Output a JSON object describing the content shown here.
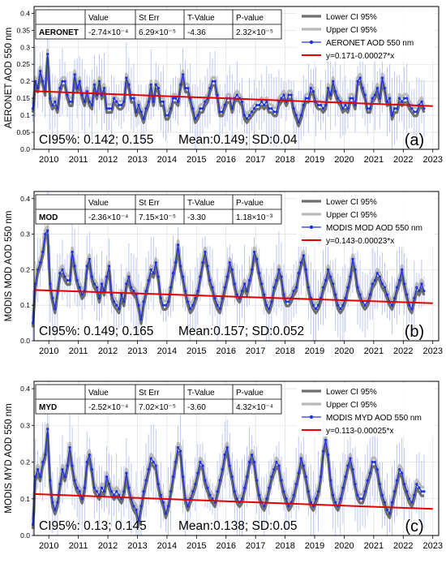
{
  "figure": {
    "colors": {
      "series_blue": "#1f33d6",
      "ci_lower": "#6f6f6f",
      "ci_upper": "#b9b9b9",
      "errbar": "#b9c2f2",
      "fit_red": "#e00000",
      "frame": "#000000"
    }
  },
  "chart_data": [
    {
      "type": "line",
      "panel_label": "(a)",
      "ylabel": "AERONET AOD 550 nm",
      "xlabel": "",
      "xlim": [
        2009.5,
        2023.2
      ],
      "ylim": [
        0.0,
        0.42
      ],
      "ytick_values": [
        0.0,
        0.05,
        0.1,
        0.15,
        0.2,
        0.25,
        0.3,
        0.35,
        0.4
      ],
      "ytick_labels": [
        "0.0",
        "0.05",
        "0.1",
        "0.15",
        "0.2",
        "0.25",
        "0.3",
        "0.35",
        "0.4"
      ],
      "xtick_values": [
        2010,
        2011,
        2012,
        2013,
        2014,
        2015,
        2016,
        2017,
        2018,
        2019,
        2020,
        2021,
        2022,
        2023
      ],
      "xtick_labels": [
        "2010",
        "2011",
        "2012",
        "2013",
        "2014",
        "2015",
        "2016",
        "2017",
        "2018",
        "2019",
        "2020",
        "2021",
        "2022",
        "2023"
      ],
      "grid": true,
      "legend_position": "top-right",
      "legend": [
        "Lower CI 95%",
        "Upper CI 95%",
        "AERONET AOD 550 nm",
        "y=0.171-0.00027*x"
      ],
      "stats_table": {
        "header": [
          "",
          "Value",
          "St Err",
          "T-Value",
          "P-value"
        ],
        "row": [
          "AERONET",
          "-2.74×10⁻⁴",
          "6.29×10⁻⁵",
          "-4.36",
          "2.32×10⁻⁵"
        ]
      },
      "ci_text": "CI95%: 0.142; 0.155",
      "mean_text": "Mean:0.149; SD:0.04",
      "fit": {
        "intercept": 0.171,
        "slope": -0.00027
      },
      "x_start": 2009.46,
      "dx": 0.0833,
      "mean_value": 0.149,
      "values": [
        0.12,
        0.2,
        0.18,
        0.23,
        0.2,
        0.17,
        0.28,
        0.15,
        0.13,
        0.14,
        0.12,
        0.18,
        0.2,
        0.2,
        0.16,
        0.14,
        0.14,
        0.22,
        0.18,
        0.2,
        0.16,
        0.14,
        0.17,
        0.14,
        0.13,
        0.19,
        0.16,
        0.2,
        0.16,
        0.18,
        0.12,
        0.12,
        0.12,
        0.15,
        0.14,
        0.13,
        0.13,
        0.14,
        0.21,
        0.19,
        0.15,
        0.15,
        0.11,
        0.13,
        0.11,
        0.09,
        0.12,
        0.14,
        0.19,
        0.14,
        0.19,
        0.18,
        0.14,
        0.14,
        0.1,
        0.1,
        0.12,
        0.15,
        0.15,
        0.14,
        0.19,
        0.22,
        0.18,
        0.18,
        0.15,
        0.12,
        0.09,
        0.1,
        0.12,
        0.12,
        0.14,
        0.15,
        0.18,
        0.2,
        0.2,
        0.16,
        0.11,
        0.11,
        0.13,
        0.15,
        0.15,
        0.12,
        0.15,
        0.16,
        0.15,
        0.14,
        0.1,
        0.09,
        0.1,
        0.11,
        0.12,
        0.13,
        0.13,
        0.14,
        0.13,
        0.14,
        0.12,
        0.12,
        0.11,
        0.11,
        0.14,
        0.15,
        0.16,
        0.14,
        0.16,
        0.16,
        0.12,
        0.1,
        0.08,
        0.1,
        0.13,
        0.15,
        0.15,
        0.18,
        0.17,
        0.14,
        0.13,
        0.13,
        0.12,
        0.13,
        0.18,
        0.16,
        0.2,
        0.17,
        0.15,
        0.14,
        0.12,
        0.13,
        0.12,
        0.15,
        0.15,
        0.13,
        0.2,
        0.21,
        0.18,
        0.16,
        0.12,
        0.12,
        0.15,
        0.16,
        0.18,
        0.15,
        0.21,
        0.18,
        0.14,
        0.15,
        0.1,
        0.12,
        0.12,
        0.15,
        0.14,
        0.15,
        0.15,
        0.13,
        0.12,
        0.11,
        0.11,
        0.13,
        0.14,
        0.12
      ]
    },
    {
      "type": "line",
      "panel_label": "(b)",
      "ylabel": "MODIS MOD AOD 550 nm",
      "xlabel": "",
      "xlim": [
        2009.5,
        2023.2
      ],
      "ylim": [
        0.0,
        0.42
      ],
      "ytick_values": [
        0.0,
        0.1,
        0.2,
        0.3,
        0.4
      ],
      "ytick_labels": [
        "0.0",
        "0.1",
        "0.2",
        "0.3",
        "0.4"
      ],
      "xtick_values": [
        2010,
        2011,
        2012,
        2013,
        2014,
        2015,
        2016,
        2017,
        2018,
        2019,
        2020,
        2021,
        2022,
        2023
      ],
      "xtick_labels": [
        "2010",
        "2011",
        "2012",
        "2013",
        "2014",
        "2015",
        "2016",
        "2017",
        "2018",
        "2019",
        "2020",
        "2021",
        "2022",
        "2023"
      ],
      "grid": true,
      "legend_position": "top-right",
      "legend": [
        "Lower CI 95%",
        "Upper CI 95%",
        "MODIS MOD AOD 550 nm",
        "y=0.143-0.00023*x"
      ],
      "stats_table": {
        "header": [
          "",
          "Value",
          "St Err",
          "T-Value",
          "P-value"
        ],
        "row": [
          "MOD",
          "-2.36×10⁻⁴",
          "7.15×10⁻⁵",
          "-3.30",
          "1.18×10⁻³"
        ]
      },
      "ci_text": "CI95%: 0.149; 0.165",
      "mean_text": "Mean:0.157; SD:0.052",
      "fit": {
        "intercept": 0.143,
        "slope": -0.00023
      },
      "x_start": 2009.46,
      "dx": 0.0833,
      "mean_value": 0.157,
      "values": [
        0.05,
        0.16,
        0.2,
        0.22,
        0.25,
        0.3,
        0.31,
        0.16,
        0.12,
        0.09,
        0.14,
        0.19,
        0.2,
        0.18,
        0.17,
        0.17,
        0.25,
        0.21,
        0.17,
        0.15,
        0.13,
        0.14,
        0.21,
        0.23,
        0.18,
        0.16,
        0.15,
        0.12,
        0.16,
        0.14,
        0.18,
        0.21,
        0.13,
        0.11,
        0.1,
        0.09,
        0.13,
        0.11,
        0.16,
        0.18,
        0.15,
        0.14,
        0.13,
        0.1,
        0.06,
        0.11,
        0.14,
        0.17,
        0.2,
        0.19,
        0.22,
        0.18,
        0.12,
        0.1,
        0.1,
        0.11,
        0.15,
        0.19,
        0.22,
        0.27,
        0.21,
        0.18,
        0.14,
        0.11,
        0.09,
        0.1,
        0.12,
        0.14,
        0.18,
        0.22,
        0.25,
        0.21,
        0.17,
        0.15,
        0.12,
        0.1,
        0.09,
        0.12,
        0.15,
        0.18,
        0.22,
        0.2,
        0.16,
        0.13,
        0.12,
        0.14,
        0.16,
        0.14,
        0.17,
        0.2,
        0.25,
        0.23,
        0.19,
        0.16,
        0.13,
        0.1,
        0.09,
        0.11,
        0.15,
        0.17,
        0.2,
        0.18,
        0.13,
        0.11,
        0.11,
        0.12,
        0.14,
        0.15,
        0.19,
        0.22,
        0.24,
        0.2,
        0.15,
        0.12,
        0.1,
        0.09,
        0.1,
        0.12,
        0.15,
        0.17,
        0.2,
        0.18,
        0.16,
        0.13,
        0.1,
        0.09,
        0.1,
        0.12,
        0.15,
        0.18,
        0.23,
        0.2,
        0.15,
        0.13,
        0.11,
        0.1,
        0.11,
        0.13,
        0.16,
        0.17,
        0.19,
        0.18,
        0.16,
        0.15,
        0.13,
        0.11,
        0.1,
        0.12,
        0.15,
        0.17,
        0.2,
        0.16,
        0.13,
        0.1,
        0.09,
        0.12,
        0.15,
        0.14,
        0.16,
        0.14
      ]
    },
    {
      "type": "line",
      "panel_label": "(c)",
      "ylabel": "MODIS MYD AOD 550 nm",
      "xlabel": "",
      "xlim": [
        2009.5,
        2023.2
      ],
      "ylim": [
        0.0,
        0.42
      ],
      "ytick_values": [
        0.0,
        0.1,
        0.2,
        0.3,
        0.4
      ],
      "ytick_labels": [
        "0.0",
        "0.1",
        "0.2",
        "0.3",
        "0.4"
      ],
      "xtick_values": [
        2010,
        2011,
        2012,
        2013,
        2014,
        2015,
        2016,
        2017,
        2018,
        2019,
        2020,
        2021,
        2022,
        2023
      ],
      "xtick_labels": [
        "2010",
        "2011",
        "2012",
        "2013",
        "2014",
        "2015",
        "2016",
        "2017",
        "2018",
        "2019",
        "2020",
        "2021",
        "2022",
        "2023"
      ],
      "grid": true,
      "legend_position": "top-right",
      "legend": [
        "Lower CI 95%",
        "Upper CI 95%",
        "MODIS MYD AOD 550 nm",
        "y=0.113-0.00025*x"
      ],
      "stats_table": {
        "header": [
          "",
          "Value",
          "St Err",
          "T-Value",
          "P-value"
        ],
        "row": [
          "MYD",
          "-2.52×10⁻⁴",
          "7.02×10⁻⁵",
          "-3.60",
          "4.32×10⁻⁴"
        ]
      },
      "ci_text": "CI95%: 0.13; 0.145",
      "mean_text": "Mean:0.138; SD:0.05",
      "fit": {
        "intercept": 0.113,
        "slope": -0.00025
      },
      "x_start": 2009.46,
      "dx": 0.0833,
      "mean_value": 0.138,
      "values": [
        0.03,
        0.16,
        0.18,
        0.16,
        0.2,
        0.22,
        0.29,
        0.15,
        0.09,
        0.07,
        0.09,
        0.14,
        0.18,
        0.16,
        0.19,
        0.24,
        0.19,
        0.15,
        0.13,
        0.12,
        0.1,
        0.13,
        0.2,
        0.22,
        0.18,
        0.13,
        0.12,
        0.11,
        0.13,
        0.12,
        0.16,
        0.14,
        0.12,
        0.11,
        0.12,
        0.11,
        0.1,
        0.12,
        0.17,
        0.13,
        0.1,
        0.08,
        0.07,
        0.04,
        0.08,
        0.12,
        0.15,
        0.18,
        0.21,
        0.2,
        0.19,
        0.14,
        0.11,
        0.09,
        0.06,
        0.08,
        0.12,
        0.16,
        0.2,
        0.24,
        0.23,
        0.16,
        0.1,
        0.08,
        0.1,
        0.12,
        0.14,
        0.17,
        0.2,
        0.19,
        0.15,
        0.13,
        0.11,
        0.1,
        0.09,
        0.12,
        0.15,
        0.18,
        0.22,
        0.24,
        0.19,
        0.16,
        0.12,
        0.1,
        0.09,
        0.1,
        0.13,
        0.16,
        0.2,
        0.22,
        0.2,
        0.15,
        0.11,
        0.09,
        0.08,
        0.1,
        0.13,
        0.16,
        0.18,
        0.2,
        0.19,
        0.15,
        0.12,
        0.1,
        0.08,
        0.09,
        0.11,
        0.14,
        0.17,
        0.21,
        0.19,
        0.16,
        0.12,
        0.09,
        0.08,
        0.1,
        0.12,
        0.16,
        0.23,
        0.26,
        0.22,
        0.15,
        0.11,
        0.09,
        0.08,
        0.1,
        0.13,
        0.16,
        0.19,
        0.21,
        0.18,
        0.14,
        0.11,
        0.1,
        0.1,
        0.12,
        0.15,
        0.17,
        0.2,
        0.2,
        0.18,
        0.14,
        0.11,
        0.09,
        0.07,
        0.06,
        0.09,
        0.12,
        0.15,
        0.18,
        0.17,
        0.14,
        0.12,
        0.1,
        0.09,
        0.11,
        0.14,
        0.13,
        0.12,
        0.12
      ]
    }
  ]
}
